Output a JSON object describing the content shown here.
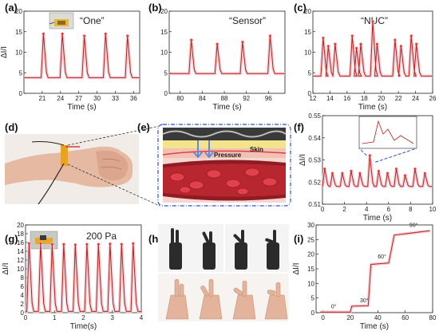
{
  "figure": {
    "panels": {
      "a": {
        "label": "(a)",
        "note": "“One”"
      },
      "b": {
        "label": "(b)",
        "note": "“Sensor”"
      },
      "c": {
        "label": "(c)",
        "note": "“NUC”"
      },
      "d": {
        "label": "(d)"
      },
      "e": {
        "label": "(e)",
        "skin_label": "Skin",
        "pressure_label": "Pressure"
      },
      "f": {
        "label": "(f)"
      },
      "g": {
        "label": "(g)",
        "note": "200 Pa"
      },
      "h": {
        "label": "(h)"
      },
      "i": {
        "label": "(i)"
      }
    }
  },
  "chart_data": [
    {
      "panel": "a",
      "type": "line",
      "xlabel": "Time (s)",
      "ylabel": "ΔI/I",
      "xlim": [
        18,
        37
      ],
      "ylim": [
        0,
        20
      ],
      "xticks": [
        21,
        24,
        27,
        30,
        33,
        36
      ],
      "yticks": [
        0,
        5,
        10,
        15,
        20
      ],
      "baseline": 3.8,
      "peaks": [
        {
          "x": 21.2,
          "y": 14.5
        },
        {
          "x": 24.3,
          "y": 14.5
        },
        {
          "x": 27.9,
          "y": 14.0
        },
        {
          "x": 31.4,
          "y": 14.5
        },
        {
          "x": 35.0,
          "y": 14.0
        }
      ]
    },
    {
      "panel": "b",
      "type": "line",
      "xlabel": "Time (s)",
      "ylabel": "",
      "xlim": [
        78,
        99
      ],
      "ylim": [
        0,
        20
      ],
      "xticks": [
        80,
        84,
        88,
        92,
        96
      ],
      "yticks": [
        0,
        5,
        10,
        15,
        20
      ],
      "baseline": 4.8,
      "peaks": [
        {
          "x": 82.0,
          "y": 13.0
        },
        {
          "x": 86.7,
          "y": 12.0
        },
        {
          "x": 91.3,
          "y": 12.5
        },
        {
          "x": 96.3,
          "y": 14.0
        }
      ]
    },
    {
      "panel": "c",
      "type": "line",
      "xlabel": "Time (s)",
      "ylabel": "",
      "xlim": [
        12,
        26
      ],
      "ylim": [
        0,
        20
      ],
      "xticks": [
        12,
        14,
        16,
        18,
        20,
        22,
        24,
        26
      ],
      "yticks": [
        0,
        5,
        10,
        15,
        20
      ],
      "baseline": 4.2,
      "peaks": [
        {
          "x": 13.2,
          "y": 13.5
        },
        {
          "x": 13.8,
          "y": 11.5
        },
        {
          "x": 14.6,
          "y": 12.0
        },
        {
          "x": 16.6,
          "y": 14.0
        },
        {
          "x": 17.1,
          "y": 11.0
        },
        {
          "x": 17.6,
          "y": 12.0
        },
        {
          "x": 19.0,
          "y": 17.5
        },
        {
          "x": 19.5,
          "y": 12.0
        },
        {
          "x": 21.6,
          "y": 13.0
        },
        {
          "x": 22.3,
          "y": 11.5
        },
        {
          "x": 23.5,
          "y": 14.0
        },
        {
          "x": 24.1,
          "y": 12.0
        }
      ]
    },
    {
      "panel": "f",
      "type": "line",
      "xlabel": "Time (s)",
      "ylabel": "ΔI/I",
      "xlim": [
        0,
        10
      ],
      "ylim": [
        0.51,
        0.55
      ],
      "xticks": [
        0,
        2,
        4,
        6,
        8,
        10
      ],
      "yticks": [
        0.51,
        0.52,
        0.53,
        0.54,
        0.55
      ],
      "baseline": 0.518,
      "peaks": [
        {
          "x": 0.2,
          "y": 0.526
        },
        {
          "x": 0.9,
          "y": 0.524
        },
        {
          "x": 1.8,
          "y": 0.524
        },
        {
          "x": 2.6,
          "y": 0.525
        },
        {
          "x": 3.4,
          "y": 0.524
        },
        {
          "x": 4.3,
          "y": 0.532
        },
        {
          "x": 5.1,
          "y": 0.525
        },
        {
          "x": 5.9,
          "y": 0.524
        },
        {
          "x": 6.7,
          "y": 0.526
        },
        {
          "x": 7.5,
          "y": 0.523
        },
        {
          "x": 8.4,
          "y": 0.526
        },
        {
          "x": 9.3,
          "y": 0.524
        }
      ]
    },
    {
      "panel": "g",
      "type": "line",
      "xlabel": "Time(s)",
      "ylabel": "ΔI/I",
      "xlim": [
        0,
        4
      ],
      "ylim": [
        0,
        20
      ],
      "xticks": [
        0,
        1,
        2,
        3,
        4
      ],
      "yticks": [
        0,
        2,
        4,
        6,
        8,
        10,
        12,
        14,
        16,
        18,
        20
      ],
      "baseline": 0.3,
      "peaks": [
        {
          "x": 0.12,
          "y": 15.8
        },
        {
          "x": 0.52,
          "y": 15.8
        },
        {
          "x": 0.92,
          "y": 15.6
        },
        {
          "x": 1.32,
          "y": 15.6
        },
        {
          "x": 1.72,
          "y": 15.5
        },
        {
          "x": 2.12,
          "y": 15.6
        },
        {
          "x": 2.52,
          "y": 15.6
        },
        {
          "x": 2.92,
          "y": 15.7
        },
        {
          "x": 3.32,
          "y": 15.6
        },
        {
          "x": 3.72,
          "y": 15.8
        }
      ]
    },
    {
      "panel": "i",
      "type": "line",
      "xlabel": "Time (s)",
      "ylabel": "ΔI/I",
      "xlim": [
        -5,
        80
      ],
      "ylim": [
        0,
        30
      ],
      "xticks": [
        0,
        20,
        40,
        60,
        80
      ],
      "yticks": [
        0,
        5,
        10,
        15,
        20,
        25,
        30
      ],
      "steps": [
        {
          "x": -2,
          "y": 0.2
        },
        {
          "x": 20,
          "y": 0.2
        },
        {
          "x": 21,
          "y": 2.2
        },
        {
          "x": 33,
          "y": 2.4
        },
        {
          "x": 35,
          "y": 16.5
        },
        {
          "x": 48,
          "y": 17.0
        },
        {
          "x": 52,
          "y": 26.5
        },
        {
          "x": 78,
          "y": 28.0
        }
      ],
      "step_labels": [
        {
          "x": 6,
          "y": 1.5,
          "text": "0°"
        },
        {
          "x": 27,
          "y": 3.6,
          "text": "30°"
        },
        {
          "x": 40,
          "y": 18.5,
          "text": "60°"
        },
        {
          "x": 63,
          "y": 29.3,
          "text": "90°"
        }
      ]
    }
  ],
  "colors": {
    "signal_line": "#b3231a",
    "signal_halo": "#f4c7d2",
    "marker": "#ff2a2a",
    "axis": "#222222",
    "inset_frame": "#2d4fd6",
    "blood": "#c8232c",
    "skin": "#f2c1b6"
  }
}
